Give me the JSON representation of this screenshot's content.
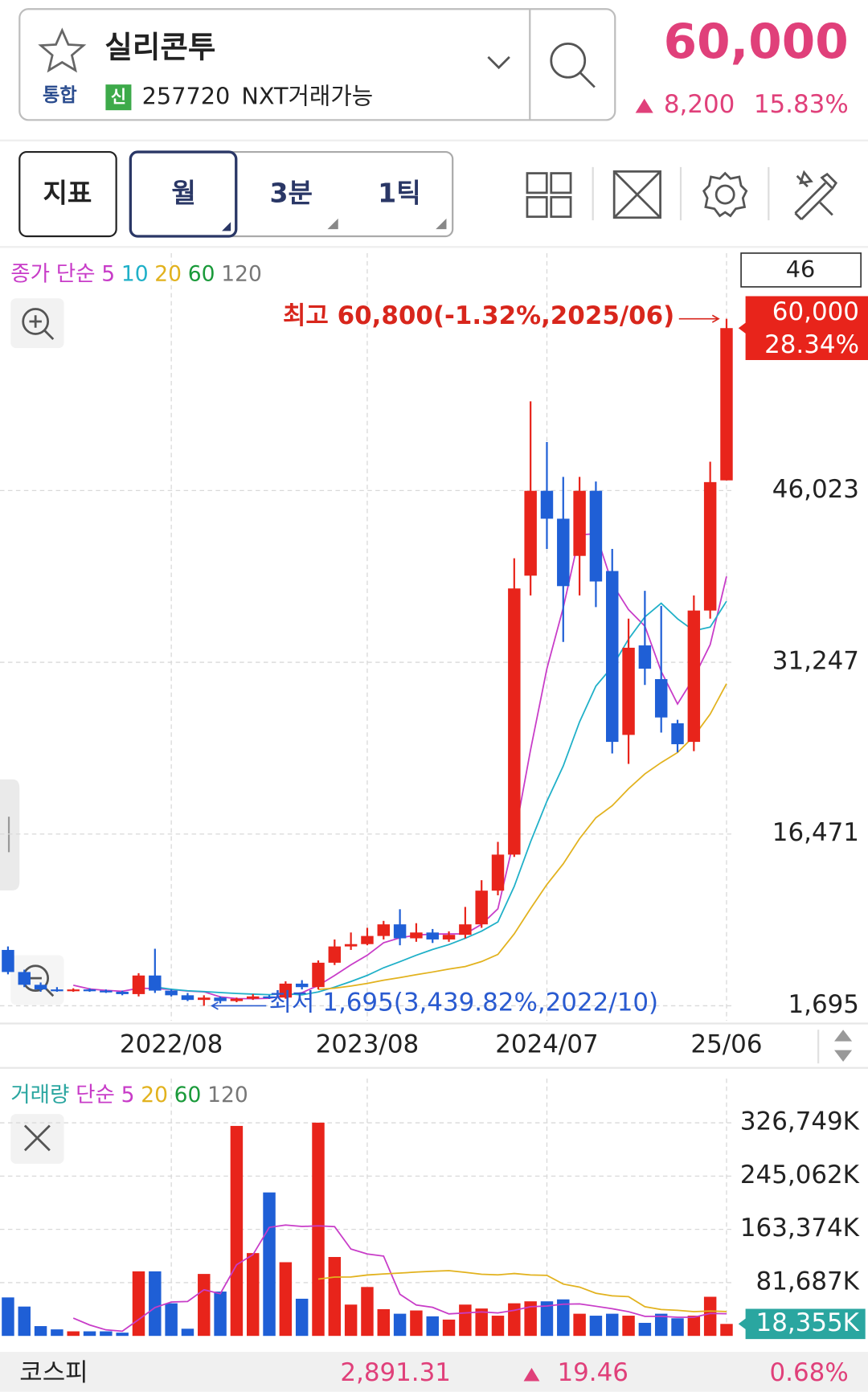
{
  "header": {
    "name": "실리콘투",
    "market": "통합",
    "badge": "신",
    "code": "257720",
    "nxt": "NXT거래가능",
    "price": "60,000",
    "change": "8,200",
    "change_pct": "15.83%"
  },
  "toolbar": {
    "indicator": "지표",
    "period": "월",
    "interval": "3분",
    "tick": "1틱"
  },
  "chart_data": [
    {
      "type": "candlestick",
      "legend_title": "종가",
      "legend_method": "단순",
      "categories": [
        null,
        null,
        null,
        null,
        null,
        null,
        null,
        null,
        null,
        null,
        "2022/08",
        null,
        null,
        null,
        null,
        null,
        null,
        null,
        null,
        null,
        null,
        null,
        "2023/08",
        null,
        null,
        null,
        null,
        null,
        null,
        null,
        null,
        null,
        null,
        "2024/07",
        null,
        null,
        null,
        null,
        null,
        null,
        null,
        null,
        null,
        null,
        "25/06"
      ],
      "open": [
        6500,
        4600,
        3500,
        3100,
        3000,
        3100,
        3000,
        2900,
        2700,
        4300,
        3000,
        2600,
        2200,
        2400,
        2100,
        2300,
        2500,
        2400,
        3600,
        3300,
        5400,
        6800,
        7000,
        7700,
        8700,
        7500,
        8000,
        7400,
        7800,
        8700,
        11600,
        14700,
        38700,
        46000,
        43600,
        40400,
        46000,
        39100,
        25000,
        32700,
        29800,
        26000,
        24400,
        35700,
        46900
      ],
      "high": [
        6800,
        4800,
        3700,
        3300,
        3200,
        3200,
        3100,
        3000,
        4500,
        6600,
        3100,
        2800,
        2600,
        2500,
        2400,
        2700,
        2600,
        3800,
        3900,
        5600,
        7400,
        8000,
        8400,
        9000,
        10000,
        8800,
        8300,
        8100,
        10200,
        12500,
        15800,
        40200,
        53700,
        50200,
        47200,
        47200,
        46800,
        41000,
        35000,
        37400,
        36100,
        26300,
        37000,
        48500,
        60800
      ],
      "low": [
        4400,
        3300,
        2900,
        2900,
        2900,
        2900,
        2800,
        2600,
        2500,
        2800,
        2500,
        2100,
        1695,
        1900,
        2000,
        2200,
        2300,
        2300,
        3100,
        3100,
        5200,
        6500,
        6900,
        7400,
        6900,
        7200,
        7100,
        7200,
        7500,
        8400,
        11200,
        14500,
        37000,
        41000,
        33000,
        37000,
        36000,
        23400,
        22500,
        29300,
        25200,
        23500,
        23600,
        35000,
        46900
      ],
      "close": [
        4600,
        3500,
        3100,
        3000,
        3100,
        3000,
        2900,
        2700,
        4300,
        3000,
        2600,
        2200,
        2400,
        2100,
        2300,
        2500,
        2400,
        3600,
        3300,
        5400,
        6800,
        7000,
        7700,
        8700,
        7500,
        8000,
        7400,
        7800,
        8700,
        11600,
        14700,
        37600,
        46000,
        43600,
        37800,
        46000,
        38200,
        24400,
        32500,
        30700,
        26500,
        24200,
        35700,
        46750,
        60000
      ],
      "moving_averages": [
        {
          "name": "5",
          "color": "#c83cc8",
          "values": [
            null,
            null,
            null,
            null,
            3460,
            3140,
            3020,
            2940,
            3200,
            3180,
            3100,
            2960,
            2900,
            2460,
            2320,
            2300,
            2340,
            2580,
            2820,
            3440,
            4300,
            5220,
            6040,
            7120,
            7540,
            7780,
            7860,
            7880,
            7880,
            8700,
            10040,
            16080,
            23720,
            30700,
            35940,
            42200,
            42320,
            38000,
            35780,
            34360,
            30460,
            27660,
            29920,
            32770,
            38630
          ]
        },
        {
          "name": "10",
          "color": "#1fb0c8",
          "values": [
            null,
            null,
            null,
            null,
            null,
            null,
            null,
            null,
            null,
            3320,
            3120,
            2990,
            2920,
            2830,
            2750,
            2700,
            2650,
            2740,
            2640,
            2880,
            3300,
            3780,
            4310,
            4970,
            5490,
            6040,
            6540,
            6960,
            7500,
            8120,
            8910,
            11970,
            15800,
            19290,
            22320,
            26120,
            29200,
            30860,
            33240,
            35150,
            36330,
            34990,
            33960,
            34280,
            36500
          ]
        },
        {
          "name": "20",
          "color": "#e2b21e",
          "values": [
            null,
            null,
            null,
            null,
            null,
            null,
            null,
            null,
            null,
            null,
            null,
            null,
            null,
            null,
            null,
            null,
            null,
            null,
            null,
            3100,
            3210,
            3390,
            3620,
            3900,
            4120,
            4370,
            4600,
            4850,
            5070,
            5500,
            6110,
            7880,
            10060,
            12130,
            13910,
            16080,
            17870,
            18910,
            20370,
            21640,
            22620,
            23480,
            24880,
            26790,
            29410
          ]
        },
        {
          "name": "60",
          "color": "#1a9a3a"
        },
        {
          "name": "120",
          "color": "#777777"
        }
      ],
      "ylim": [
        400,
        66450
      ],
      "yticks": [
        {
          "value": 1695,
          "label": "1,695"
        },
        {
          "value": 16471,
          "label": "16,471"
        },
        {
          "value": 31247,
          "label": "31,247"
        },
        {
          "value": 46023,
          "label": "46,023"
        }
      ],
      "grid": true,
      "up_color": "#e8241b",
      "down_color": "#1f5fd6",
      "high_annotation": "최고 60,800(-1.32%,2025/06)",
      "low_annotation": "최저 1,695(3,439.82%,2022/10)",
      "count_label": "46",
      "last_price_label": "60,000",
      "last_change_label": "28.34%"
    },
    {
      "type": "volume",
      "legend_title": "거래량",
      "legend_method": "단순",
      "values": [
        59000,
        45000,
        15000,
        10000,
        7000,
        7000,
        7000,
        5000,
        99000,
        99000,
        50000,
        11000,
        95000,
        68000,
        322000,
        127000,
        220000,
        113000,
        57000,
        327000,
        121000,
        48000,
        75000,
        41000,
        34000,
        39000,
        30000,
        25000,
        48000,
        42000,
        31000,
        50000,
        53000,
        53000,
        56000,
        34000,
        31000,
        34000,
        31000,
        20000,
        34000,
        27000,
        31000,
        60000,
        18355
      ],
      "moving_averages": [
        {
          "name": "5",
          "color": "#c83cc8",
          "values": [
            null,
            null,
            null,
            null,
            27200,
            16800,
            9200,
            7200,
            25000,
            43400,
            52000,
            52800,
            70800,
            64600,
            109200,
            124600,
            166400,
            170000,
            167800,
            168800,
            167600,
            133200,
            125600,
            122400,
            63800,
            47400,
            43800,
            33800,
            35200,
            36800,
            35200,
            39200,
            44800,
            45800,
            48600,
            49200,
            45400,
            41600,
            37200,
            30000,
            30000,
            28600,
            28600,
            34400,
            34071
          ]
        },
        {
          "name": "20",
          "color": "#e2b21e",
          "values": [
            null,
            null,
            null,
            null,
            null,
            null,
            null,
            null,
            null,
            null,
            null,
            null,
            null,
            null,
            null,
            null,
            null,
            null,
            null,
            87150,
            90250,
            90400,
            93400,
            94950,
            96300,
            97900,
            99050,
            100050,
            97500,
            94650,
            93700,
            95650,
            93550,
            92800,
            79500,
            74850,
            65400,
            61450,
            60150,
            44800,
            40450,
            39250,
            37200,
            38150,
            37370
          ]
        },
        {
          "name": "60",
          "color": "#1a9a3a"
        },
        {
          "name": "120",
          "color": "#777777"
        }
      ],
      "ylim": [
        0,
        394700
      ],
      "yticks": [
        {
          "value": 81687,
          "label": "81,687K"
        },
        {
          "value": 163374,
          "label": "163,374K"
        },
        {
          "value": 245062,
          "label": "245,062K"
        },
        {
          "value": 326749,
          "label": "326,749K"
        }
      ],
      "grid": true,
      "last_label": "18,355K",
      "last_color": "#2aa6a0"
    }
  ],
  "footer": {
    "name": "코스피",
    "value": "2,891.31",
    "change": "19.46",
    "change_pct": "0.68%"
  }
}
